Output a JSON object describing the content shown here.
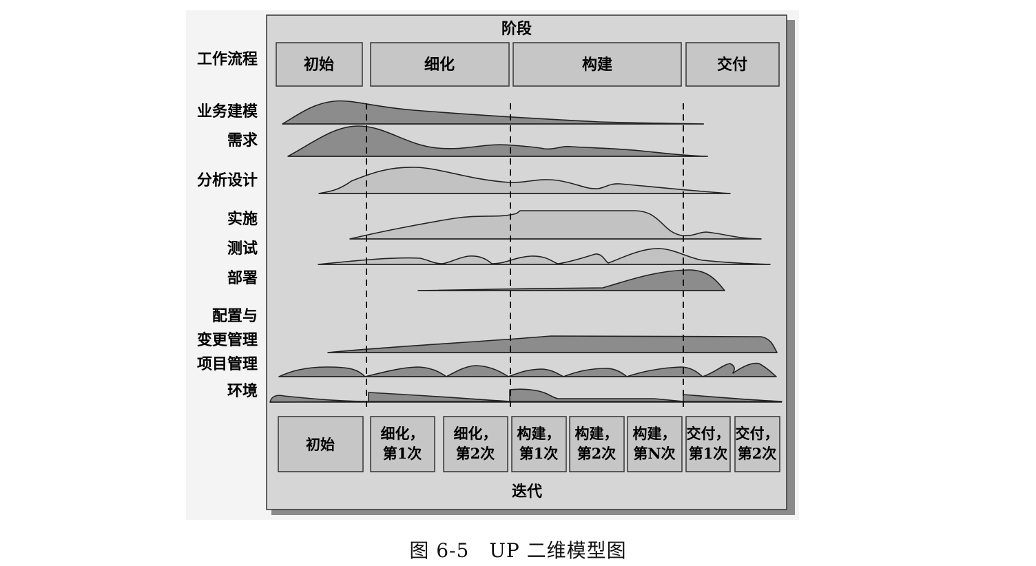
{
  "diagram": {
    "phases_title": "阶段",
    "iterations_title": "迭代",
    "workflow_header": "工作流程",
    "phases": [
      "初始",
      "细化",
      "构建",
      "交付"
    ],
    "workflows": [
      "业务建模",
      "需求",
      "分析设计",
      "实施",
      "测试",
      "部署",
      "配置与",
      "变更管理",
      "项目管理",
      "环境"
    ],
    "iterations": [
      {
        "line1": "初始",
        "line2": ""
      },
      {
        "line1": "细化，",
        "line2": "第1次"
      },
      {
        "line1": "细化，",
        "line2": "第2次"
      },
      {
        "line1": "构建，",
        "line2": "第1次"
      },
      {
        "line1": "构建，",
        "line2": "第2次"
      },
      {
        "line1": "构建，",
        "line2": "第N次"
      },
      {
        "line1": "交付，",
        "line2": "第1次"
      },
      {
        "line1": "交付，",
        "line2": "第2次"
      }
    ],
    "colors": {
      "panel": "#d6d6d6",
      "box": "#c6c6c6",
      "dark": "#8c8c8c",
      "light": "#c2c2c2",
      "shadow": "#8a8a8a"
    }
  },
  "caption": "图 6-5　UP 二维模型图"
}
